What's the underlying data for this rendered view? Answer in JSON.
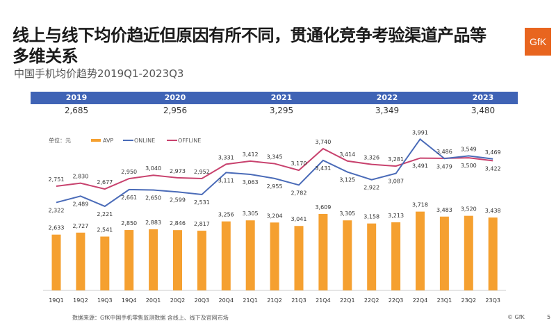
{
  "slide": {
    "title": "线上与线下均价趋近但原因有所不同，贯通化竞争考验渠道产品等多维关系",
    "subtitle": "中国手机均价趋势2019Q1-2023Q3",
    "logo": "GfK",
    "source": "数据来源：GfK中国手机零售监测数据 含线上、线下及官网市场",
    "copyright": "© GfK",
    "page_number": "5"
  },
  "annual": {
    "years": [
      "2019",
      "2020",
      "2021",
      "2022",
      "2023"
    ],
    "values": [
      "2,685",
      "2,956",
      "3,295",
      "3,349",
      "3,480"
    ],
    "header_color": "#3f63b5"
  },
  "chart_data": {
    "type": "bar+line",
    "unit_label": "单位：元",
    "legend_placement": "top-left",
    "categories": [
      "19Q1",
      "19Q2",
      "19Q3",
      "19Q4",
      "20Q1",
      "20Q2",
      "20Q3",
      "20Q4",
      "21Q1",
      "21Q2",
      "21Q3",
      "21Q4",
      "22Q1",
      "22Q2",
      "22Q3",
      "22Q4",
      "23Q1",
      "23Q2",
      "23Q3"
    ],
    "series": [
      {
        "name": "AVP",
        "type": "bar",
        "color": "#f5a030",
        "values": [
          2633,
          2727,
          2541,
          2850,
          2883,
          2846,
          2817,
          3256,
          3305,
          3204,
          3041,
          3609,
          3305,
          3158,
          3213,
          3718,
          3483,
          3520,
          3438
        ]
      },
      {
        "name": "ONLINE",
        "type": "line",
        "color": "#4a6bb8",
        "values": [
          2322,
          2489,
          2221,
          2661,
          2650,
          2599,
          2531,
          3111,
          3063,
          2955,
          2782,
          3431,
          3125,
          2922,
          3087,
          3991,
          3479,
          3549,
          3469
        ]
      },
      {
        "name": "OFFLINE",
        "type": "line",
        "color": "#c8426e",
        "values": [
          2751,
          2830,
          2677,
          2950,
          3040,
          2973,
          2952,
          3331,
          3412,
          3345,
          3170,
          3740,
          3414,
          3326,
          3281,
          3491,
          3486,
          3500,
          3422
        ]
      }
    ],
    "grid": false
  }
}
